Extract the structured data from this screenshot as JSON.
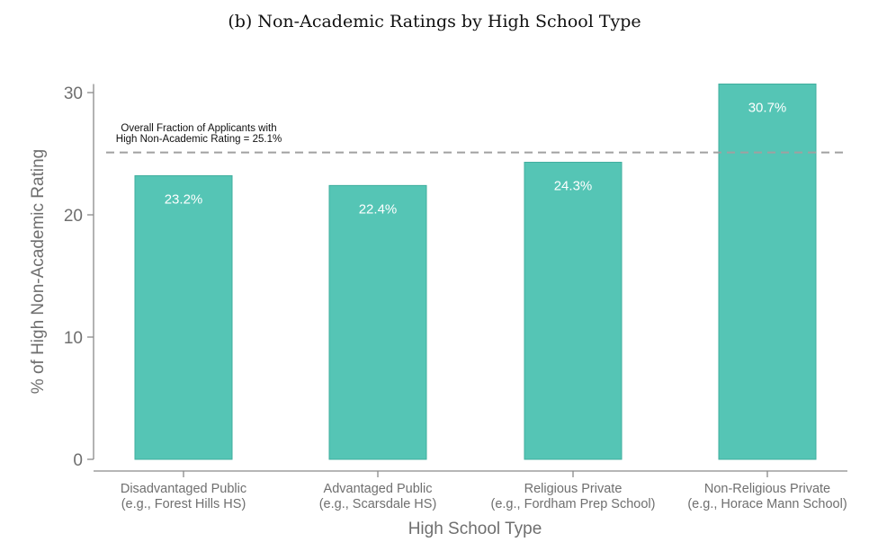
{
  "chart_data": {
    "type": "bar",
    "title": "(b) Non-Academic Ratings by High School Type",
    "xlabel": "High School Type",
    "ylabel": "% of High Non-Academic Rating",
    "categories": [
      [
        "Disadvantaged Public",
        "(e.g., Forest Hills HS)"
      ],
      [
        "Advantaged Public",
        "(e.g., Scarsdale HS)"
      ],
      [
        "Religious Private",
        "(e.g., Fordham Prep School)"
      ],
      [
        "Non-Religious Private",
        "(e.g., Horace Mann School)"
      ]
    ],
    "values": [
      23.2,
      22.4,
      24.3,
      30.7
    ],
    "data_labels": [
      "23.2%",
      "22.4%",
      "24.3%",
      "30.7%"
    ],
    "ylim": [
      0,
      30.7
    ],
    "yticks": [
      0,
      10,
      20,
      30
    ],
    "grid": false,
    "bar_color": "#55c5b5",
    "bar_edge_color": "#3fae9e",
    "reference_line": {
      "value": 25.1,
      "style": "dashed",
      "color": "#a0a0a0",
      "label": [
        "Overall Fraction of Applicants with",
        "High Non-Academic Rating = 25.1%"
      ]
    }
  }
}
